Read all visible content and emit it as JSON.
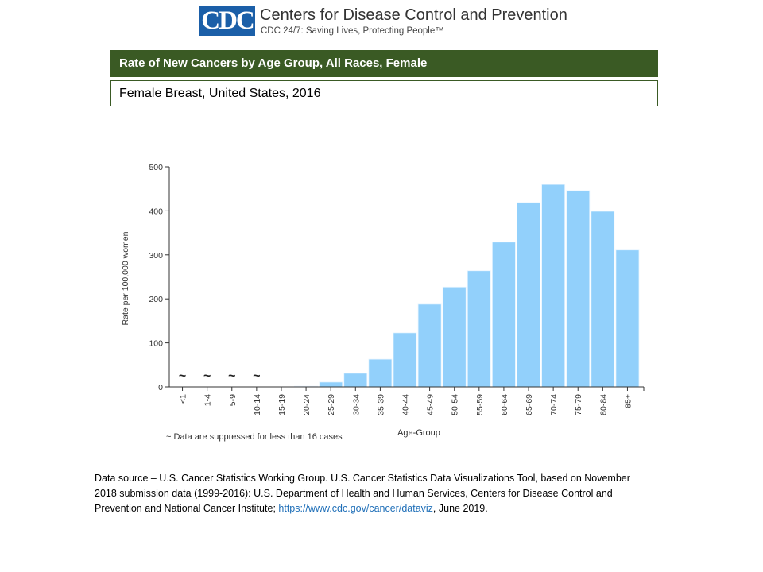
{
  "header": {
    "logo_text": "CDC",
    "org_name": "Centers for Disease Control and Prevention",
    "tagline": "CDC 24/7: Saving Lives, Protecting People™"
  },
  "title": "Rate of New Cancers by Age Group, All Races, Female",
  "subtitle": "Female Breast, United States, 2016",
  "footnote": "~ Data are suppressed for less than 16 cases",
  "source": {
    "text_before": "Data source – U.S. Cancer Statistics Working Group. U.S. Cancer Statistics Data Visualizations Tool, based on November 2018 submission data (1999-2016): U.S. Department of Health and Human Services, Centers for Disease Control and Prevention and National Cancer Institute; ",
    "link": "https://www.cdc.gov/cancer/dataviz",
    "text_after": ", June 2019."
  },
  "colors": {
    "bar": "#92d0fb",
    "title_bg": "#3a5a24",
    "link": "#1f6fb8"
  },
  "chart_data": {
    "type": "bar",
    "title": "Rate of New Cancers by Age Group, All Races, Female",
    "subtitle": "Female Breast, United States, 2016",
    "xlabel": "Age-Group",
    "ylabel": "Rate per 100,000 women",
    "ylim": [
      0,
      500
    ],
    "yticks": [
      0,
      100,
      200,
      300,
      400,
      500
    ],
    "grid": false,
    "categories": [
      "<1",
      "1-4",
      "5-9",
      "10-14",
      "15-19",
      "20-24",
      "25-29",
      "30-34",
      "35-39",
      "40-44",
      "45-49",
      "50-54",
      "55-59",
      "60-64",
      "65-69",
      "70-74",
      "75-79",
      "80-84",
      "85+"
    ],
    "values": [
      null,
      null,
      null,
      null,
      0,
      1.5,
      11,
      31,
      63,
      123,
      188,
      227,
      264,
      329,
      419,
      460,
      446,
      399,
      311
    ],
    "suppressed": [
      true,
      true,
      true,
      true,
      false,
      false,
      false,
      false,
      false,
      false,
      false,
      false,
      false,
      false,
      false,
      false,
      false,
      false,
      false
    ],
    "suppressed_marker": "~"
  }
}
